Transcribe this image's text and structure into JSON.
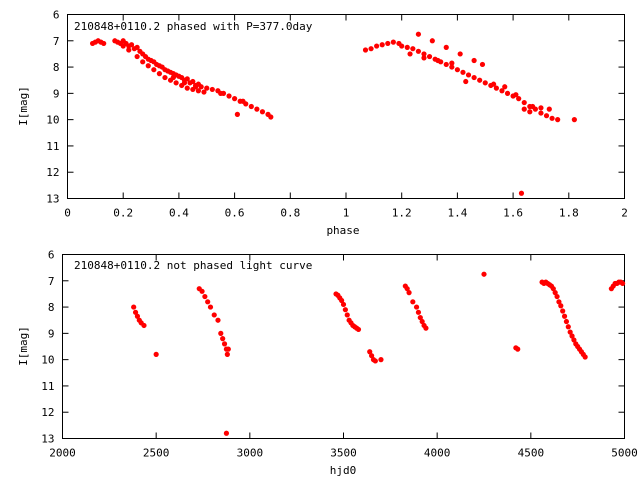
{
  "chart_data": [
    {
      "type": "scatter",
      "title": "210848+0110.2 phased with P=377.0day",
      "xlabel": "phase",
      "ylabel": "I[mag]",
      "xlim": [
        0,
        2
      ],
      "ylim": [
        13,
        6
      ],
      "y_inverted": true,
      "grid": false,
      "xticks": [
        0,
        0.2,
        0.4,
        0.6,
        0.8,
        1,
        1.2,
        1.4,
        1.6,
        1.8,
        2
      ],
      "xtick_labels": [
        "0",
        "0.2",
        "0.4",
        "0.6",
        "0.8",
        "1",
        "1.2",
        "1.4",
        "1.6",
        "1.8",
        "2"
      ],
      "yticks": [
        6,
        7,
        8,
        9,
        10,
        11,
        12,
        13
      ],
      "ytick_labels": [
        "6",
        "7",
        "8",
        "9",
        "10",
        "11",
        "12",
        "13"
      ],
      "marker_color": "#ff0000",
      "series": [
        {
          "x": [
            0.09,
            0.1,
            0.11,
            0.12,
            0.13,
            0.17,
            0.18,
            0.19,
            0.2,
            0.21,
            0.22,
            0.23,
            0.24,
            0.25,
            0.26,
            0.27,
            0.28,
            0.29,
            0.3,
            0.31,
            0.32,
            0.33,
            0.34,
            0.35,
            0.36,
            0.37,
            0.38,
            0.39,
            0.4,
            0.41,
            0.42,
            0.43,
            0.44,
            0.45,
            0.46,
            0.47,
            0.48,
            0.5,
            0.52,
            0.54,
            0.56,
            0.58,
            0.6,
            0.62,
            0.64,
            0.66,
            0.68,
            0.7,
            0.72,
            0.73,
            0.31,
            0.33,
            0.35,
            0.37,
            0.39,
            0.41,
            0.43,
            0.45,
            0.47,
            0.49,
            0.25,
            0.27,
            0.29,
            0.63,
            0.2,
            0.22,
            0.38,
            0.42,
            0.46,
            0.55,
            0.61,
            1.07,
            1.09,
            1.11,
            1.13,
            1.15,
            1.17,
            1.19,
            1.2,
            1.22,
            1.24,
            1.26,
            1.28,
            1.3,
            1.32,
            1.34,
            1.36,
            1.38,
            1.4,
            1.42,
            1.44,
            1.46,
            1.48,
            1.5,
            1.52,
            1.54,
            1.56,
            1.58,
            1.6,
            1.62,
            1.64,
            1.66,
            1.68,
            1.7,
            1.72,
            1.74,
            1.76,
            1.26,
            1.31,
            1.36,
            1.41,
            1.46,
            1.49,
            1.64,
            1.67,
            1.7,
            1.73,
            1.82,
            1.63,
            1.23,
            1.28,
            1.33,
            1.38,
            1.43,
            1.53,
            1.57,
            1.61,
            1.66
          ],
          "y": [
            7.1,
            7.05,
            7.0,
            7.05,
            7.1,
            7.0,
            7.05,
            7.1,
            7.0,
            7.1,
            7.2,
            7.15,
            7.3,
            7.25,
            7.4,
            7.5,
            7.6,
            7.7,
            7.75,
            7.8,
            7.9,
            7.95,
            8.0,
            8.1,
            8.15,
            8.2,
            8.25,
            8.3,
            8.35,
            8.4,
            8.5,
            8.45,
            8.6,
            8.55,
            8.7,
            8.65,
            8.75,
            8.8,
            8.85,
            8.9,
            9.0,
            9.1,
            9.2,
            9.3,
            9.4,
            9.5,
            9.6,
            9.7,
            9.8,
            9.9,
            8.1,
            8.25,
            8.4,
            8.5,
            8.6,
            8.7,
            8.8,
            8.85,
            8.9,
            8.95,
            7.6,
            7.8,
            7.95,
            9.3,
            7.2,
            7.35,
            8.4,
            8.6,
            8.75,
            9.0,
            9.8,
            7.35,
            7.3,
            7.2,
            7.15,
            7.1,
            7.05,
            7.1,
            7.2,
            7.25,
            7.3,
            7.4,
            7.5,
            7.6,
            7.7,
            7.8,
            7.9,
            8.0,
            8.1,
            8.2,
            8.3,
            8.4,
            8.5,
            8.6,
            8.7,
            8.8,
            8.9,
            9.0,
            9.1,
            9.2,
            9.35,
            9.5,
            9.6,
            9.75,
            9.85,
            9.95,
            10.0,
            6.75,
            7.0,
            7.25,
            7.5,
            7.75,
            7.9,
            9.6,
            9.5,
            9.55,
            9.6,
            10.0,
            12.8,
            7.5,
            7.65,
            7.75,
            7.85,
            8.55,
            8.65,
            8.75,
            9.05,
            9.7
          ]
        }
      ]
    },
    {
      "type": "scatter",
      "title": "210848+0110.2 not phased light curve",
      "xlabel": "hjd0",
      "ylabel": "I[mag]",
      "xlim": [
        2000,
        5000
      ],
      "ylim": [
        13,
        6
      ],
      "y_inverted": true,
      "grid": false,
      "xticks": [
        2000,
        2500,
        3000,
        3500,
        4000,
        4500,
        5000
      ],
      "xtick_labels": [
        "2000",
        "2500",
        "3000",
        "3500",
        "4000",
        "4500",
        "5000"
      ],
      "yticks": [
        6,
        7,
        8,
        9,
        10,
        11,
        12,
        13
      ],
      "ytick_labels": [
        "6",
        "7",
        "8",
        "9",
        "10",
        "11",
        "12",
        "13"
      ],
      "marker_color": "#ff0000",
      "series": [
        {
          "x": [
            2380,
            2390,
            2400,
            2410,
            2420,
            2435,
            2500,
            2730,
            2745,
            2760,
            2775,
            2790,
            2810,
            2830,
            2845,
            2855,
            2865,
            2875,
            2880,
            2885,
            2875,
            3460,
            3470,
            3480,
            3490,
            3500,
            3510,
            3520,
            3530,
            3540,
            3550,
            3560,
            3570,
            3580,
            3640,
            3650,
            3660,
            3670,
            3700,
            3830,
            3840,
            3850,
            3870,
            3890,
            3900,
            3910,
            3920,
            3930,
            3940,
            4250,
            4420,
            4430,
            4560,
            4570,
            4580,
            4590,
            4600,
            4610,
            4620,
            4630,
            4640,
            4650,
            4660,
            4670,
            4680,
            4690,
            4700,
            4710,
            4720,
            4730,
            4740,
            4750,
            4760,
            4770,
            4780,
            4790,
            4930,
            4940,
            4950,
            4960,
            4970,
            4980,
            4990
          ],
          "y": [
            8.0,
            8.2,
            8.35,
            8.5,
            8.6,
            8.7,
            9.8,
            7.3,
            7.4,
            7.6,
            7.8,
            8.0,
            8.3,
            8.5,
            9.0,
            9.2,
            9.4,
            9.6,
            9.8,
            9.6,
            12.8,
            7.5,
            7.55,
            7.65,
            7.75,
            7.9,
            8.1,
            8.3,
            8.5,
            8.6,
            8.7,
            8.75,
            8.8,
            8.85,
            9.7,
            9.85,
            10.0,
            10.05,
            10.0,
            7.2,
            7.3,
            7.45,
            7.8,
            8.0,
            8.2,
            8.4,
            8.55,
            8.7,
            8.8,
            6.75,
            9.55,
            9.6,
            7.05,
            7.1,
            7.05,
            7.1,
            7.15,
            7.2,
            7.3,
            7.45,
            7.6,
            7.8,
            7.95,
            8.15,
            8.35,
            8.55,
            8.75,
            8.95,
            9.1,
            9.25,
            9.4,
            9.5,
            9.6,
            9.7,
            9.8,
            9.9,
            7.3,
            7.2,
            7.1,
            7.1,
            7.05,
            7.05,
            7.1
          ]
        }
      ]
    }
  ]
}
